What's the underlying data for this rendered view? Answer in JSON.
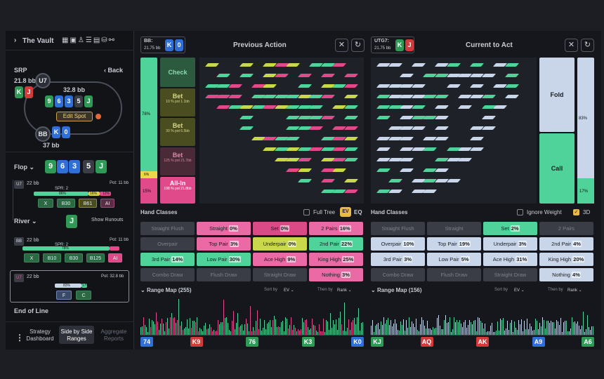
{
  "sidebar": {
    "title": "The Vault",
    "spot_label": "SRP",
    "back_label": "Back",
    "hero_stack": "21.8 bb",
    "hero_seat": "U7",
    "pot": "32.8 bb",
    "edit_spot": "Edit Spot",
    "bb_seat": "BB",
    "bb_stack": "37 bb",
    "flop_label": "Flop",
    "flop_cards": [
      "9",
      "6",
      "3",
      "5",
      "J"
    ],
    "line1": {
      "seat": "U7",
      "stack": "22 bb",
      "spr": "SPR: 2",
      "pot": "Pot: 11 bb",
      "pcts": [
        "86%",
        "16%",
        "12%"
      ],
      "actions": [
        "X",
        "B30",
        "B61",
        "AI"
      ]
    },
    "river_label": "River",
    "river_card": "J",
    "show_runouts": "Show Runouts",
    "line2": {
      "seat": "BB",
      "stack": "22 bb",
      "spr": "SPR: 2",
      "pot": "Pot: 11 bb",
      "pcts": [
        "78%"
      ],
      "actions": [
        "X",
        "B10",
        "B30",
        "B125",
        "AI"
      ]
    },
    "line3": {
      "seat": "U7",
      "stack": "22 bb",
      "pot": "Pot: 32.8 bb",
      "pcts": [
        "83%",
        "17%"
      ],
      "actions": [
        "F",
        "C"
      ]
    },
    "end_of_line": "End of Line",
    "bottom_tabs": [
      "Strategy Dashboard",
      "Side by Side Ranges",
      "Aggregate Reports"
    ]
  },
  "left_panel": {
    "player": "BB:",
    "stack": "21.75 bb",
    "cards": [
      "K",
      "0"
    ],
    "title": "Previous Action",
    "strategy": [
      {
        "label": "Check",
        "pct": ""
      },
      {
        "label": "Bet",
        "sub": "10 % pot 1.1bb"
      },
      {
        "label": "Bet",
        "sub": "30 % pot 6.5bb"
      },
      {
        "label": "Bet",
        "sub": "125 % pot 21.7bb"
      },
      {
        "label": "All-In",
        "sub": "198 % pot 21.8bb"
      }
    ],
    "side_pcts": [
      "78%",
      "6%",
      "15%"
    ],
    "hand_classes_label": "Hand Classes",
    "full_tree": "Full Tree",
    "ev": "EV",
    "eq": "EQ",
    "classes": [
      {
        "name": "Straight Flush",
        "pct": "",
        "dim": true
      },
      {
        "name": "Straight",
        "pct": "0%",
        "color": "#ea6aa5"
      },
      {
        "name": "Set",
        "pct": "0%",
        "color": "#d94a86"
      },
      {
        "name": "2 Pairs",
        "pct": "16%",
        "color": "#ea6aa5"
      },
      {
        "name": "Overpair",
        "pct": "",
        "dim": true
      },
      {
        "name": "Top Pair",
        "pct": "3%",
        "color": "#ea6aa5"
      },
      {
        "name": "Underpair",
        "pct": "0%",
        "color": "#c9d84a"
      },
      {
        "name": "2nd Pair",
        "pct": "22%",
        "color": "#4fd39a"
      },
      {
        "name": "3rd Pair",
        "pct": "14%",
        "color": "#4fd39a"
      },
      {
        "name": "Low Pair",
        "pct": "30%",
        "color": "#4fd39a"
      },
      {
        "name": "Ace High",
        "pct": "9%",
        "color": "#ea6aa5"
      },
      {
        "name": "King High",
        "pct": "25%",
        "color": "#ea6aa5"
      },
      {
        "name": "Combo Draw",
        "pct": "",
        "dim": true
      },
      {
        "name": "Flush Draw",
        "pct": "",
        "dim": true
      },
      {
        "name": "Straight Draw",
        "pct": "",
        "dim": true
      },
      {
        "name": "Nothing",
        "pct": "3%",
        "color": "#ea6aa5"
      }
    ],
    "range_map": "Range Map (255)",
    "sort_by": "Sort by",
    "sort_val": "EV",
    "then_by": "Then by",
    "then_val": "Rank",
    "bottom_cards": [
      {
        "r": "7",
        "s": "4",
        "c": "blue"
      },
      {
        "r": "K",
        "s": "9",
        "c": "red"
      },
      {
        "r": "7",
        "s": "6",
        "c": "green"
      },
      {
        "r": "K",
        "s": "3",
        "c": "green"
      },
      {
        "r": "K",
        "s": "0",
        "c": "blue"
      }
    ]
  },
  "right_panel": {
    "player": "UTG7:",
    "stack": "21.75 bb",
    "cards": [
      "K",
      "J"
    ],
    "title": "Current to Act",
    "fold": "Fold",
    "call": "Call",
    "fold_pct": "83%",
    "call_pct": "17%",
    "hand_classes_label": "Hand Classes",
    "ignore_weight": "Ignore Weight",
    "three_d": "3D",
    "classes": [
      {
        "name": "Straight Flush",
        "pct": "",
        "dim": true
      },
      {
        "name": "Straight",
        "pct": "",
        "dim": true
      },
      {
        "name": "Set",
        "pct": "2%",
        "color": "#4fd39a"
      },
      {
        "name": "2 Pairs",
        "pct": "",
        "dim": true
      },
      {
        "name": "Overpair",
        "pct": "10%",
        "color": "#c9d6ea"
      },
      {
        "name": "Top Pair",
        "pct": "19%",
        "color": "#c9d6ea"
      },
      {
        "name": "Underpair",
        "pct": "3%",
        "color": "#c9d6ea"
      },
      {
        "name": "2nd Pair",
        "pct": "4%",
        "color": "#c9d6ea"
      },
      {
        "name": "3rd Pair",
        "pct": "3%",
        "color": "#c9d6ea"
      },
      {
        "name": "Low Pair",
        "pct": "5%",
        "color": "#c9d6ea"
      },
      {
        "name": "Ace High",
        "pct": "31%",
        "color": "#c9d6ea"
      },
      {
        "name": "King High",
        "pct": "20%",
        "color": "#c9d6ea"
      },
      {
        "name": "Combo Draw",
        "pct": "",
        "dim": true
      },
      {
        "name": "Flush Draw",
        "pct": "",
        "dim": true
      },
      {
        "name": "Straight Draw",
        "pct": "",
        "dim": true
      },
      {
        "name": "Nothing",
        "pct": "4%",
        "color": "#c9d6ea"
      }
    ],
    "range_map": "Range Map (156)",
    "sort_by": "Sort by",
    "sort_val": "EV",
    "then_by": "Then by",
    "then_val": "Rank",
    "bottom_cards": [
      {
        "r": "K",
        "s": "J",
        "c": "green"
      },
      {
        "r": "A",
        "s": "Q",
        "c": "red"
      },
      {
        "r": "A",
        "s": "K",
        "c": "red"
      },
      {
        "r": "A",
        "s": "9",
        "c": "blue"
      },
      {
        "r": "A",
        "s": "6",
        "c": "green"
      }
    ]
  },
  "colors": {
    "green": "#4fd39a",
    "pink": "#e0498a",
    "lavender": "#c9d6ea",
    "accent": "#e7b84a"
  }
}
